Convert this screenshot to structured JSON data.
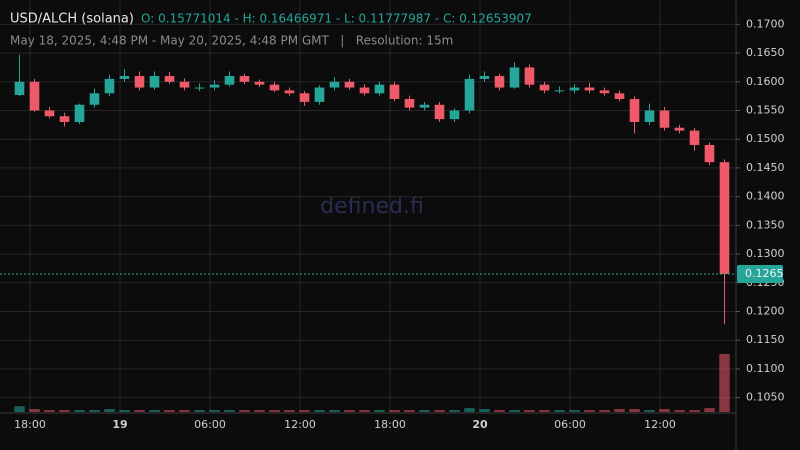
{
  "chart_data": {
    "type": "candlestick",
    "title": "USD/ALCH (solana)",
    "ohlc_summary": "O: 0.15771014 - H: 0.16466971 - L: 0.11777987 - C: 0.12653907",
    "subtitle": "May 18, 2025, 4:48 PM - May 20, 2025, 4:48 PM GMT   |   Resolution: 15m",
    "watermark": "defined.fi",
    "up_color": "#26a69a",
    "down_color": "#ef5a6a",
    "xlim": [
      0,
      48
    ],
    "xticks": [
      {
        "value": 1.2,
        "label": "18:00"
      },
      {
        "value": 7.2,
        "label": "19"
      },
      {
        "value": 13.2,
        "label": "06:00"
      },
      {
        "value": 19.2,
        "label": "12:00"
      },
      {
        "value": 25.2,
        "label": "18:00"
      },
      {
        "value": 31.2,
        "label": "20"
      },
      {
        "value": 37.2,
        "label": "06:00"
      },
      {
        "value": 43.2,
        "label": "12:00"
      }
    ],
    "ylim": [
      0.1025,
      0.1725
    ],
    "yticks": [
      {
        "value": 0.105,
        "label": "0.1050"
      },
      {
        "value": 0.11,
        "label": "0.1100"
      },
      {
        "value": 0.115,
        "label": "0.1150"
      },
      {
        "value": 0.12,
        "label": "0.1200"
      },
      {
        "value": 0.125,
        "label": "0.1250"
      },
      {
        "value": 0.13,
        "label": "0.1300"
      },
      {
        "value": 0.135,
        "label": "0.1350"
      },
      {
        "value": 0.14,
        "label": "0.1400"
      },
      {
        "value": 0.145,
        "label": "0.1450"
      },
      {
        "value": 0.15,
        "label": "0.1500"
      },
      {
        "value": 0.155,
        "label": "0.1550"
      },
      {
        "value": 0.16,
        "label": "0.1600"
      },
      {
        "value": 0.165,
        "label": "0.1650"
      },
      {
        "value": 0.17,
        "label": "0.1700"
      }
    ],
    "grid": true,
    "last_price": {
      "value": 0.12653907,
      "label": "0.1265"
    },
    "open": [
      0.1577,
      0.16,
      0.155,
      0.154,
      0.153,
      0.156,
      0.158,
      0.1605,
      0.161,
      0.159,
      0.161,
      0.16,
      0.159,
      0.159,
      0.1595,
      0.161,
      0.16,
      0.1595,
      0.1585,
      0.158,
      0.1565,
      0.159,
      0.16,
      0.159,
      0.158,
      0.1595,
      0.157,
      0.1555,
      0.156,
      0.1535,
      0.155,
      0.1605,
      0.161,
      0.159,
      0.1625,
      0.1595,
      0.1585,
      0.1585,
      0.159,
      0.1585,
      0.158,
      0.157,
      0.153,
      0.155,
      0.152,
      0.1515,
      0.149,
      0.146
    ],
    "high": [
      0.1647,
      0.1605,
      0.1556,
      0.1546,
      0.1562,
      0.1588,
      0.1612,
      0.1622,
      0.1618,
      0.1618,
      0.1617,
      0.1606,
      0.1597,
      0.1603,
      0.1618,
      0.1614,
      0.1604,
      0.16,
      0.159,
      0.1584,
      0.1594,
      0.1608,
      0.1605,
      0.1596,
      0.16,
      0.16,
      0.1576,
      0.1565,
      0.1565,
      0.1554,
      0.1612,
      0.1618,
      0.1614,
      0.1634,
      0.163,
      0.16,
      0.1592,
      0.1596,
      0.1598,
      0.159,
      0.1585,
      0.1575,
      0.1562,
      0.1556,
      0.1525,
      0.152,
      0.1494,
      0.1465
    ],
    "low": [
      0.1575,
      0.1548,
      0.1536,
      0.1522,
      0.1526,
      0.1555,
      0.1575,
      0.16,
      0.1585,
      0.1586,
      0.1596,
      0.1585,
      0.1584,
      0.1585,
      0.1592,
      0.1596,
      0.1591,
      0.1582,
      0.1576,
      0.1558,
      0.156,
      0.1585,
      0.1586,
      0.1576,
      0.1576,
      0.1566,
      0.155,
      0.155,
      0.153,
      0.153,
      0.1545,
      0.16,
      0.1585,
      0.1588,
      0.159,
      0.158,
      0.158,
      0.158,
      0.158,
      0.1576,
      0.1566,
      0.151,
      0.1525,
      0.1515,
      0.151,
      0.148,
      0.1455,
      0.11777987
    ],
    "close": [
      0.16,
      0.155,
      0.154,
      0.153,
      0.156,
      0.158,
      0.1605,
      0.161,
      0.159,
      0.161,
      0.16,
      0.159,
      0.159,
      0.1595,
      0.161,
      0.16,
      0.1595,
      0.1585,
      0.158,
      0.1565,
      0.159,
      0.16,
      0.159,
      0.158,
      0.1595,
      0.157,
      0.1555,
      0.156,
      0.1535,
      0.155,
      0.1605,
      0.161,
      0.159,
      0.1625,
      0.1595,
      0.1585,
      0.1585,
      0.159,
      0.1585,
      0.158,
      0.157,
      0.153,
      0.155,
      0.152,
      0.1515,
      0.149,
      0.146,
      0.12653907
    ],
    "volume": [
      6,
      3,
      2,
      2,
      2,
      2,
      3,
      2,
      2,
      2,
      2,
      2,
      2,
      2,
      2,
      2,
      2,
      2,
      2,
      2,
      2,
      2,
      2,
      2,
      2,
      2,
      2,
      2,
      2,
      2,
      4,
      3,
      2,
      2,
      2,
      2,
      2,
      2,
      2,
      2,
      3,
      3,
      2,
      3,
      2,
      2,
      4,
      60
    ]
  }
}
